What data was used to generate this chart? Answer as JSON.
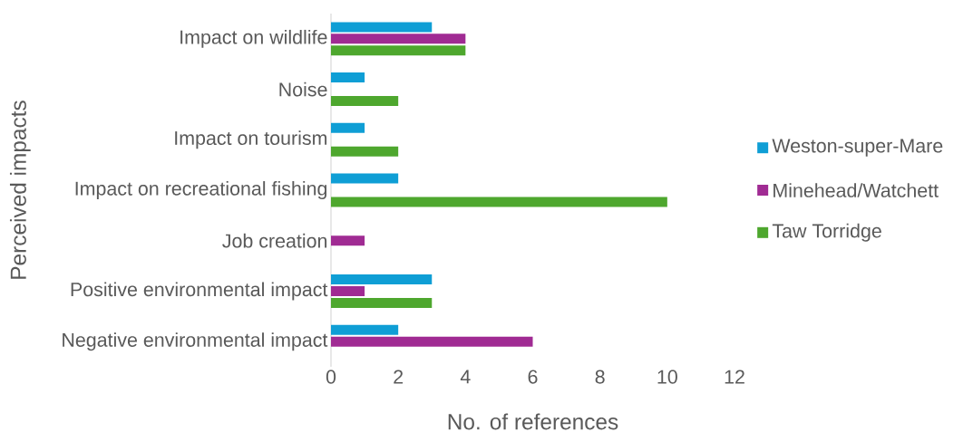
{
  "chart_data": {
    "type": "bar",
    "orientation": "horizontal",
    "xlabel": "No. of references",
    "ylabel": "Perceived impacts",
    "categories": [
      "Impact on wildlife",
      "Noise",
      "Impact on tourism",
      "Impact on recreational fishing",
      "Job creation",
      "Positive environmental impact",
      "Negative environmental impact"
    ],
    "series": [
      {
        "name": "Weston-super-Mare",
        "color": "#0f9ed5",
        "values": [
          3,
          1,
          1,
          2,
          null,
          3,
          2
        ]
      },
      {
        "name": "Minehead/Watchett",
        "color": "#a02b93",
        "values": [
          4,
          null,
          null,
          null,
          1,
          1,
          6
        ]
      },
      {
        "name": "Taw Torridge",
        "color": "#4ea72e",
        "values": [
          4,
          2,
          2,
          10,
          null,
          3,
          null
        ]
      }
    ],
    "xlim": [
      0,
      12
    ],
    "xticks": [
      0,
      2,
      4,
      6,
      8,
      10,
      12
    ],
    "grid": false,
    "legend": "right"
  }
}
